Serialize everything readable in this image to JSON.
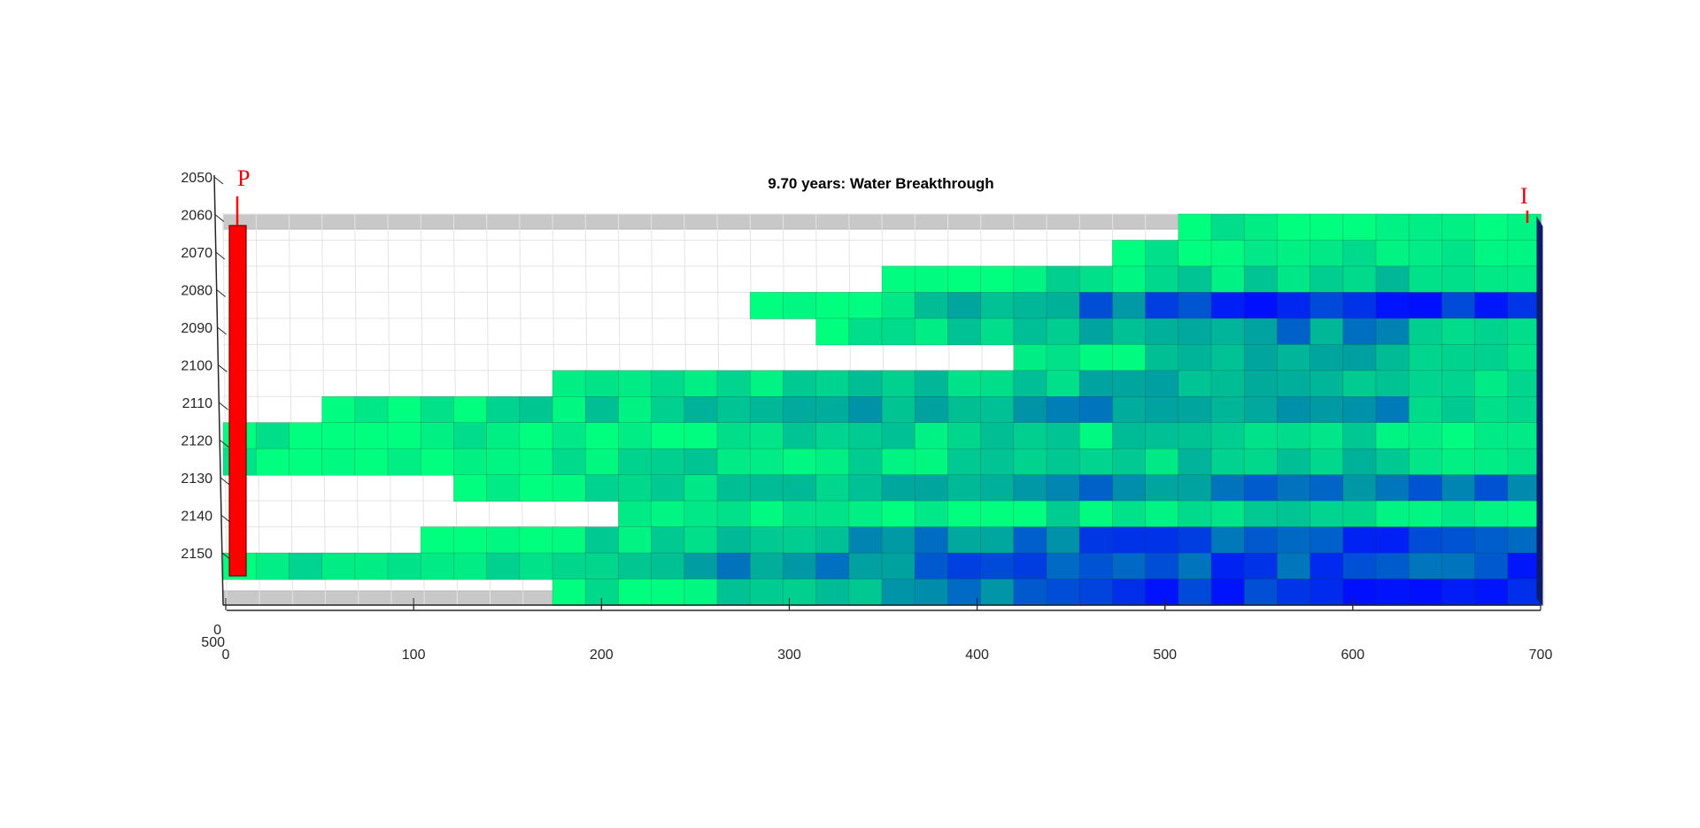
{
  "chart_data": {
    "type": "heatmap",
    "title": "9.70 years: Water Breakthrough",
    "xlabel": "",
    "ylabel": "",
    "xlim": [
      0,
      700
    ],
    "ylim": [
      2060,
      2162
    ],
    "x_ticks": [
      "0",
      "100",
      "200",
      "300",
      "400",
      "500",
      "600",
      "700"
    ],
    "y_ticks": [
      "2050",
      "2060",
      "2070",
      "2080",
      "2090",
      "2100",
      "2110",
      "2120",
      "2130",
      "2140",
      "2150"
    ],
    "z_ticks": [
      "0",
      "500"
    ],
    "wells": [
      {
        "name": "P",
        "color": "#ff0000"
      },
      {
        "name": "I",
        "color": "#ff0000"
      }
    ],
    "colors": {
      "high_saturation": "#0010ff",
      "low_saturation": "#00ff7f",
      "well": "#ff0000",
      "cell_grid": "#e3e3e3",
      "shadow": "#c8c8c8"
    },
    "grid": true
  }
}
